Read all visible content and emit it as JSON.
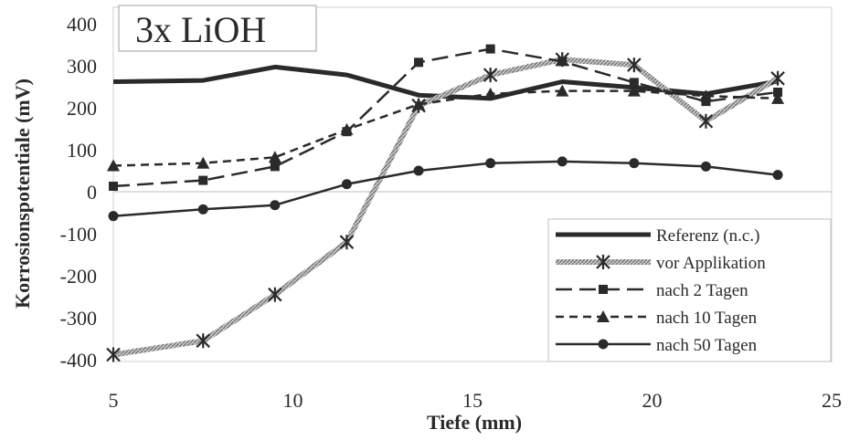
{
  "chart_data": {
    "type": "line",
    "title": "3x LiOH",
    "xlabel": "Tiefe (mm)",
    "ylabel": "Korrosionspotentiale (mV)",
    "xlim": [
      5,
      25
    ],
    "ylim": [
      -400,
      400
    ],
    "xticks": [
      5,
      10,
      15,
      20,
      25
    ],
    "yticks": [
      400,
      300,
      200,
      100,
      0,
      -100,
      -200,
      -300,
      -400
    ],
    "grid": false,
    "legend_position": "bottom-right",
    "series": [
      {
        "name": "Referenz (n.c.)",
        "color": "#2a2a2a",
        "style": "thick-solid",
        "marker": "none",
        "x": [
          5,
          7.5,
          9.5,
          11.5,
          13.5,
          15.5,
          17.5,
          19.5,
          21.5,
          23.5
        ],
        "y": [
          262,
          265,
          297,
          278,
          230,
          222,
          262,
          248,
          233,
          263
        ]
      },
      {
        "name": "vor Applikation",
        "color": "#9a9a9a",
        "style": "hatched-thick",
        "marker": "asterisk",
        "x": [
          5,
          7.5,
          9.5,
          11.5,
          13.5,
          15.5,
          17.5,
          19.5,
          21.5,
          23.5
        ],
        "y": [
          -388,
          -355,
          -245,
          -120,
          205,
          278,
          315,
          302,
          168,
          270
        ]
      },
      {
        "name": "nach 2 Tagen",
        "color": "#2a2a2a",
        "style": "long-dash",
        "marker": "square",
        "x": [
          5,
          7.5,
          9.5,
          11.5,
          13.5,
          15.5,
          17.5,
          19.5,
          21.5,
          23.5
        ],
        "y": [
          13,
          27,
          60,
          143,
          308,
          340,
          310,
          260,
          215,
          237
        ]
      },
      {
        "name": "nach 10 Tagen",
        "color": "#2a2a2a",
        "style": "dashed",
        "marker": "triangle",
        "x": [
          5,
          7.5,
          9.5,
          11.5,
          13.5,
          15.5,
          17.5,
          19.5,
          21.5,
          23.5
        ],
        "y": [
          62,
          68,
          82,
          148,
          208,
          233,
          240,
          240,
          228,
          222
        ]
      },
      {
        "name": "nach 50 Tagen",
        "color": "#2a2a2a",
        "style": "solid",
        "marker": "circle",
        "x": [
          5,
          7.5,
          9.5,
          11.5,
          13.5,
          15.5,
          17.5,
          19.5,
          21.5,
          23.5
        ],
        "y": [
          -58,
          -42,
          -32,
          18,
          50,
          68,
          72,
          68,
          60,
          40
        ]
      }
    ]
  }
}
